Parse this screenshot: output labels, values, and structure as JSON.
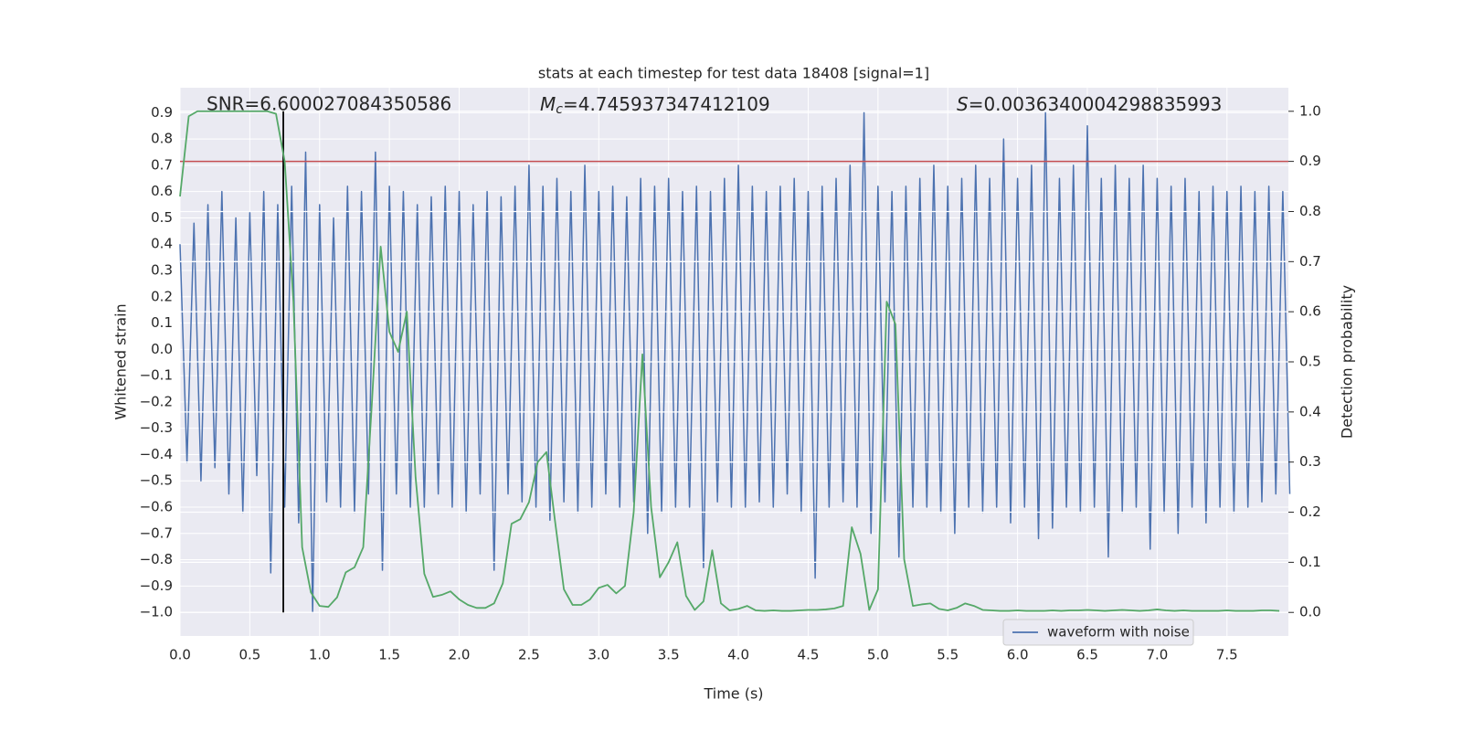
{
  "chart_data": {
    "type": "line",
    "title": "stats at each timestep for test data 18408 [signal=1]",
    "xlabel": "Time (s)",
    "ylabel": "Whitened strain",
    "y2label": "Detection probability",
    "annotations": {
      "snr": "SNR=6.600027084350586",
      "mc": {
        "symbol": "M",
        "subscript": "c",
        "text": "=4.745937347412109"
      },
      "s": {
        "symbol": "S",
        "text": "=0.0036340004298835993"
      }
    },
    "xlim": [
      0,
      7.94
    ],
    "ylim": [
      -1.09,
      0.995
    ],
    "y2lim": [
      -0.047,
      1.047
    ],
    "xticks": [
      {
        "value": 0,
        "label": "0.0"
      },
      0.5,
      {
        "value": 1,
        "label": "1.0"
      },
      1.5,
      {
        "value": 2,
        "label": "2.0"
      },
      2.5,
      {
        "value": 3,
        "label": "3.0"
      },
      3.5,
      {
        "value": 4,
        "label": "4.0"
      },
      4.5,
      {
        "value": 5,
        "label": "5.0"
      },
      5.5,
      {
        "value": 6,
        "label": "6.0"
      },
      6.5,
      {
        "value": 7,
        "label": "7.0"
      },
      7.5
    ],
    "yticks": [
      {
        "value": -1,
        "label": "−1.0"
      },
      {
        "value": -0.9,
        "label": "−0.9"
      },
      {
        "value": -0.8,
        "label": "−0.8"
      },
      {
        "value": -0.7,
        "label": "−0.7"
      },
      {
        "value": -0.6,
        "label": "−0.6"
      },
      {
        "value": -0.5,
        "label": "−0.5"
      },
      {
        "value": -0.4,
        "label": "−0.4"
      },
      {
        "value": -0.3,
        "label": "−0.3"
      },
      {
        "value": -0.2,
        "label": "−0.2"
      },
      {
        "value": -0.1,
        "label": "−0.1"
      },
      {
        "value": 0,
        "label": "0.0"
      },
      0.1,
      0.2,
      0.3,
      0.4,
      0.5,
      0.6,
      0.7,
      0.8,
      0.9
    ],
    "y2ticks": [
      {
        "value": 0,
        "label": "0.0"
      },
      0.1,
      0.2,
      0.3,
      0.4,
      0.5,
      0.6,
      0.7,
      0.8,
      0.9,
      {
        "value": 1,
        "label": "1.0"
      }
    ],
    "grid": true,
    "legend": "lower right",
    "hlines": [
      {
        "axis": "y2",
        "value": 0.9,
        "color": "#c44e52"
      }
    ],
    "vlines": [
      {
        "value": 0.74,
        "y2range": [
          0,
          1
        ],
        "color": "#000000"
      }
    ],
    "series": [
      {
        "name": "waveform with noise",
        "color": "#4c72b0",
        "axis": "y",
        "x": [
          0,
          0.05,
          0.1,
          0.15,
          0.2,
          0.25,
          0.3,
          0.35,
          0.4,
          0.45,
          0.5,
          0.55,
          0.6,
          0.65,
          0.7,
          0.75,
          0.8,
          0.85,
          0.9,
          0.95,
          1,
          1.05,
          1.1,
          1.15,
          1.2,
          1.25,
          1.3,
          1.35,
          1.4,
          1.45,
          1.5,
          1.55,
          1.6,
          1.65,
          1.7,
          1.75,
          1.8,
          1.85,
          1.9,
          1.95,
          2,
          2.05,
          2.1,
          2.15,
          2.2,
          2.25,
          2.3,
          2.35,
          2.4,
          2.45,
          2.5,
          2.55,
          2.6,
          2.65,
          2.7,
          2.75,
          2.8,
          2.85,
          2.9,
          2.95,
          3,
          3.05,
          3.1,
          3.15,
          3.2,
          3.25,
          3.3,
          3.35,
          3.4,
          3.45,
          3.5,
          3.55,
          3.6,
          3.65,
          3.7,
          3.75,
          3.8,
          3.85,
          3.9,
          3.95,
          4,
          4.05,
          4.1,
          4.15,
          4.2,
          4.25,
          4.3,
          4.35,
          4.4,
          4.45,
          4.5,
          4.55,
          4.6,
          4.65,
          4.7,
          4.75,
          4.8,
          4.85,
          4.9,
          4.95,
          5,
          5.05,
          5.1,
          5.15,
          5.2,
          5.25,
          5.3,
          5.35,
          5.4,
          5.45,
          5.5,
          5.55,
          5.6,
          5.65,
          5.7,
          5.75,
          5.8,
          5.85,
          5.9,
          5.95,
          6,
          6.05,
          6.1,
          6.15,
          6.2,
          6.25,
          6.3,
          6.35,
          6.4,
          6.45,
          6.5,
          6.55,
          6.6,
          6.65,
          6.7,
          6.75,
          6.8,
          6.85,
          6.9,
          6.95,
          7,
          7.05,
          7.1,
          7.15,
          7.2,
          7.25,
          7.3,
          7.35,
          7.4,
          7.45,
          7.5,
          7.55,
          7.6,
          7.65,
          7.7,
          7.75,
          7.8,
          7.85,
          7.9,
          7.95
        ],
        "values": [
          0.4,
          -0.43,
          0.48,
          -0.5,
          0.55,
          -0.45,
          0.6,
          -0.55,
          0.5,
          -0.62,
          0.52,
          -0.48,
          0.6,
          -0.85,
          0.55,
          -0.6,
          0.62,
          -0.66,
          0.75,
          -1.0,
          0.55,
          -0.58,
          0.5,
          -0.6,
          0.62,
          -0.62,
          0.6,
          -0.55,
          0.75,
          -0.84,
          0.62,
          -0.55,
          0.6,
          -0.6,
          0.55,
          -0.6,
          0.58,
          -0.55,
          0.62,
          -0.6,
          0.6,
          -0.62,
          0.55,
          -0.55,
          0.6,
          -0.84,
          0.58,
          -0.55,
          0.62,
          -0.58,
          0.7,
          -0.6,
          0.62,
          -0.65,
          0.65,
          -0.58,
          0.6,
          -0.62,
          0.7,
          -0.6,
          0.6,
          -0.55,
          0.62,
          -0.6,
          0.58,
          -0.58,
          0.65,
          -0.7,
          0.62,
          -0.62,
          0.65,
          -0.6,
          0.6,
          -0.6,
          0.62,
          -0.83,
          0.6,
          -0.58,
          0.65,
          -0.6,
          0.7,
          -0.6,
          0.62,
          -0.58,
          0.6,
          -0.6,
          0.62,
          -0.55,
          0.65,
          -0.62,
          0.6,
          -0.87,
          0.62,
          -0.6,
          0.65,
          -0.58,
          0.7,
          -0.6,
          0.9,
          -0.7,
          0.62,
          -0.58,
          0.6,
          -0.79,
          0.62,
          -0.6,
          0.65,
          -0.6,
          0.7,
          -0.62,
          0.62,
          -0.7,
          0.65,
          -0.6,
          0.7,
          -0.62,
          0.65,
          -0.6,
          0.8,
          -0.66,
          0.65,
          -0.6,
          0.7,
          -0.72,
          0.9,
          -0.68,
          0.65,
          -0.6,
          0.7,
          -0.62,
          0.85,
          -0.6,
          0.65,
          -0.79,
          0.7,
          -0.62,
          0.65,
          -0.6,
          0.7,
          -0.76,
          0.65,
          -0.62,
          0.62,
          -0.7,
          0.65,
          -0.6,
          0.6,
          -0.66,
          0.62,
          -0.6,
          0.6,
          -0.62,
          0.62,
          -0.6,
          0.6,
          -0.58,
          0.62,
          -0.55,
          0.6,
          -0.55
        ]
      },
      {
        "color": "#55a868",
        "axis": "y2",
        "x": [
          0,
          0.0625,
          0.125,
          0.1875,
          0.25,
          0.3125,
          0.375,
          0.4375,
          0.5,
          0.5625,
          0.625,
          0.6875,
          0.75,
          0.8125,
          0.875,
          0.9375,
          1,
          1.0625,
          1.125,
          1.1875,
          1.25,
          1.3125,
          1.375,
          1.4375,
          1.5,
          1.5625,
          1.625,
          1.6875,
          1.75,
          1.8125,
          1.875,
          1.9375,
          2,
          2.0625,
          2.125,
          2.1875,
          2.25,
          2.3125,
          2.375,
          2.4375,
          2.5,
          2.5625,
          2.625,
          2.6875,
          2.75,
          2.8125,
          2.875,
          2.9375,
          3,
          3.0625,
          3.125,
          3.1875,
          3.25,
          3.3125,
          3.375,
          3.4375,
          3.5,
          3.5625,
          3.625,
          3.6875,
          3.75,
          3.8125,
          3.875,
          3.9375,
          4,
          4.0625,
          4.125,
          4.1875,
          4.25,
          4.3125,
          4.375,
          4.4375,
          4.5,
          4.5625,
          4.625,
          4.6875,
          4.75,
          4.8125,
          4.875,
          4.9375,
          5,
          5.0625,
          5.125,
          5.1875,
          5.25,
          5.3125,
          5.375,
          5.4375,
          5.5,
          5.5625,
          5.625,
          5.6875,
          5.75,
          5.8125,
          5.875,
          5.9375,
          6,
          6.0625,
          6.125,
          6.1875,
          6.25,
          6.3125,
          6.375,
          6.4375,
          6.5,
          6.5625,
          6.625,
          6.6875,
          6.75,
          6.8125,
          6.875,
          6.9375,
          7,
          7.0625,
          7.125,
          7.1875,
          7.25,
          7.3125,
          7.375,
          7.4375,
          7.5,
          7.5625,
          7.625,
          7.6875,
          7.75,
          7.8125,
          7.875
        ],
        "values": [
          0.83,
          0.99,
          1.0,
          1.0,
          1.0,
          1.0,
          1.0,
          1.0,
          1.0,
          1.0,
          1.0,
          0.995,
          0.9,
          0.62,
          0.13,
          0.04,
          0.013,
          0.011,
          0.03,
          0.08,
          0.09,
          0.13,
          0.42,
          0.73,
          0.56,
          0.52,
          0.6,
          0.27,
          0.077,
          0.031,
          0.035,
          0.042,
          0.026,
          0.015,
          0.009,
          0.009,
          0.018,
          0.058,
          0.177,
          0.186,
          0.22,
          0.3,
          0.32,
          0.18,
          0.046,
          0.015,
          0.015,
          0.026,
          0.049,
          0.055,
          0.038,
          0.053,
          0.2,
          0.515,
          0.21,
          0.07,
          0.1,
          0.14,
          0.033,
          0.005,
          0.022,
          0.124,
          0.018,
          0.004,
          0.007,
          0.013,
          0.004,
          0.003,
          0.004,
          0.003,
          0.003,
          0.004,
          0.005,
          0.005,
          0.006,
          0.008,
          0.013,
          0.17,
          0.117,
          0.005,
          0.046,
          0.62,
          0.575,
          0.106,
          0.013,
          0.016,
          0.018,
          0.007,
          0.004,
          0.009,
          0.018,
          0.013,
          0.005,
          0.004,
          0.003,
          0.003,
          0.004,
          0.003,
          0.003,
          0.003,
          0.004,
          0.003,
          0.004,
          0.004,
          0.005,
          0.004,
          0.003,
          0.004,
          0.005,
          0.004,
          0.003,
          0.004,
          0.006,
          0.004,
          0.003,
          0.004,
          0.003,
          0.003,
          0.003,
          0.003,
          0.004,
          0.003,
          0.003,
          0.003,
          0.004,
          0.004,
          0.003
        ]
      }
    ]
  }
}
